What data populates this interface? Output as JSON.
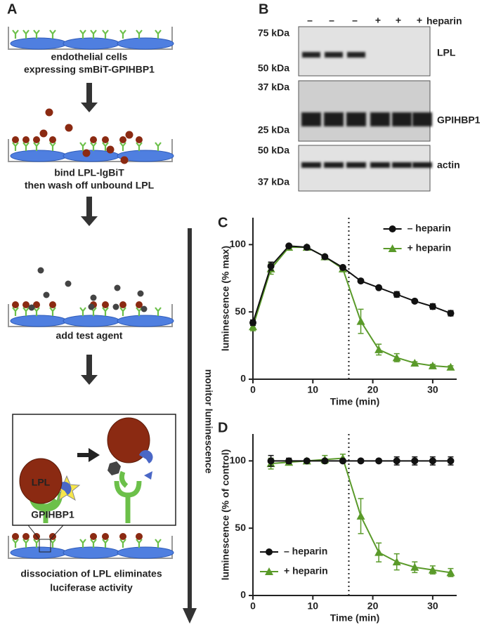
{
  "panel_labels": [
    "A",
    "B",
    "C",
    "D"
  ],
  "schematic": {
    "steps": [
      [
        "endothelial cells",
        "expressing smBiT-GPIHBP1"
      ],
      [
        "bind LPL-lgBiT",
        "then wash off unbound LPL"
      ],
      [
        "add test agent"
      ],
      [
        "dissociation of LPL eliminates",
        "luciferase activity"
      ]
    ],
    "inset": {
      "lpl": "LPL",
      "gpihbp1": "GPIHBP1"
    },
    "monitor": "monitor luminescence"
  },
  "blot": {
    "lanes": [
      "–",
      "–",
      "–",
      "+",
      "+",
      "+"
    ],
    "treatment": "heparin",
    "markers": [
      "75 kDa",
      "50 kDa",
      "37 kDa",
      "25 kDa",
      "50 kDa",
      "37 kDa"
    ],
    "bands": [
      "LPL",
      "GPIHBP1",
      "actin"
    ]
  },
  "chart_data": [
    {
      "type": "line",
      "ylabel": "luminescence (% max)",
      "xlabel": "Time (min)",
      "x": [
        0,
        3,
        6,
        9,
        12,
        15,
        18,
        21,
        24,
        27,
        30,
        33
      ],
      "xlim": [
        0,
        34
      ],
      "xticks": [
        0,
        10,
        20,
        30
      ],
      "ylim": [
        0,
        120
      ],
      "yticks": [
        0,
        50,
        100
      ],
      "vline": 16,
      "legend": "upper right",
      "series": [
        {
          "name": "– heparin",
          "color": "#111111",
          "marker": "circle",
          "values": [
            42,
            84,
            99,
            98,
            91,
            83,
            73,
            68,
            63,
            58,
            54,
            49
          ],
          "errors": [
            2,
            3,
            1,
            1,
            1,
            1,
            1,
            1,
            2,
            1,
            2,
            2
          ]
        },
        {
          "name": "+ heparin",
          "color": "#5a9a2a",
          "marker": "triangle",
          "values": [
            39,
            82,
            98,
            98,
            91,
            82,
            43,
            22,
            16,
            12,
            10,
            9
          ],
          "errors": [
            3,
            4,
            1,
            1,
            1,
            1,
            9,
            4,
            3,
            1,
            1,
            1
          ]
        }
      ]
    },
    {
      "type": "line",
      "ylabel": "luminescence (% of control)",
      "xlabel": "Time (min)",
      "x": [
        3,
        6,
        9,
        12,
        15,
        18,
        21,
        24,
        27,
        30,
        33
      ],
      "xlim": [
        0,
        34
      ],
      "xticks": [
        0,
        10,
        20,
        30
      ],
      "ylim": [
        0,
        120
      ],
      "yticks": [
        0,
        50,
        100
      ],
      "vline": 16,
      "legend": "lower left",
      "series": [
        {
          "name": "– heparin",
          "color": "#111111",
          "marker": "circle",
          "values": [
            100,
            100,
            100,
            100,
            100,
            100,
            100,
            100,
            100,
            100,
            100
          ],
          "errors": [
            4,
            2,
            1,
            1,
            1,
            1,
            1,
            3,
            3,
            3,
            3
          ]
        },
        {
          "name": "+ heparin",
          "color": "#5a9a2a",
          "marker": "triangle",
          "values": [
            98,
            99,
            100,
            101,
            102,
            59,
            32,
            25,
            21,
            19,
            17
          ],
          "errors": [
            4,
            2,
            1,
            3,
            3,
            13,
            7,
            6,
            4,
            3,
            3
          ]
        }
      ]
    }
  ]
}
